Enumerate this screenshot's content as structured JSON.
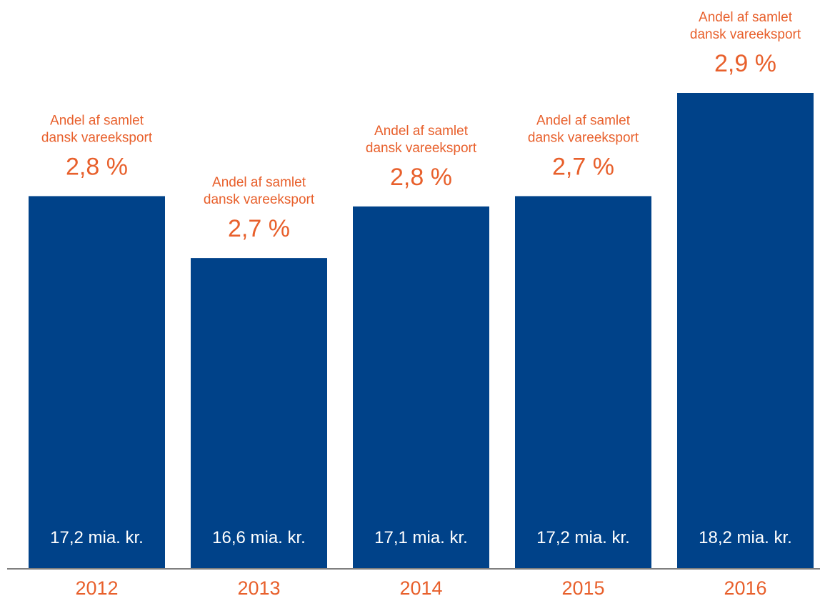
{
  "chart_data": {
    "type": "bar",
    "categories": [
      "2012",
      "2013",
      "2014",
      "2015",
      "2016"
    ],
    "values": [
      17.2,
      16.6,
      17.1,
      17.2,
      18.2
    ],
    "value_labels": [
      "17,2 mia. kr.",
      "16,6 mia. kr.",
      "17,1 mia. kr.",
      "17,2 mia. kr.",
      "18,2 mia. kr."
    ],
    "annotations": [
      {
        "line1": "Andel af samlet",
        "line2": "dansk vareeksport",
        "value": "2,8 %"
      },
      {
        "line1": "Andel af samlet",
        "line2": "dansk vareeksport",
        "value": "2,7 %"
      },
      {
        "line1": "Andel af samlet",
        "line2": "dansk vareeksport",
        "value": "2,8 %"
      },
      {
        "line1": "Andel af samlet",
        "line2": "dansk vareeksport",
        "value": "2,7 %"
      },
      {
        "line1": "Andel af samlet",
        "line2": "dansk vareeksport",
        "value": "2,9 %"
      }
    ],
    "title": "",
    "xlabel": "",
    "ylabel": "",
    "ylim": [
      0,
      18.2
    ],
    "grid": false,
    "legend": "none",
    "colors": {
      "bar": "#004289",
      "bar_text": "#ffffff",
      "annotation": "#e8602c",
      "axis": "#7f7f7f"
    }
  }
}
